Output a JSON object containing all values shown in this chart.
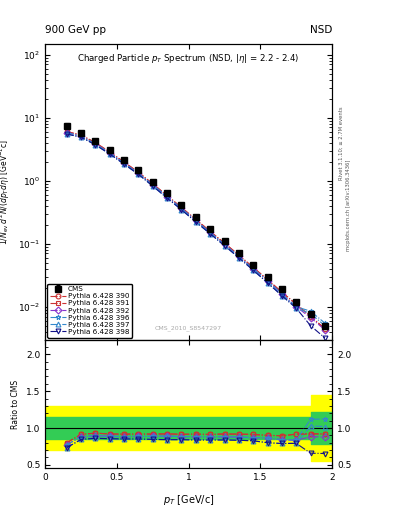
{
  "title_top_left": "900 GeV pp",
  "title_top_right": "NSD",
  "main_title": "Charged Particle p$_T$ Spectrum (NSD, |#eta| = 2.2 - 2.4)",
  "watermark": "CMS_2010_S8547297",
  "right_label_top": "Rivet 3.1.10; ≥ 2.7M events",
  "right_label_bot": "mcplots.cern.ch [arXiv:1306.3436]",
  "cms_x": [
    0.15,
    0.25,
    0.35,
    0.45,
    0.55,
    0.65,
    0.75,
    0.85,
    0.95,
    1.05,
    1.15,
    1.25,
    1.35,
    1.45,
    1.55,
    1.65,
    1.75,
    1.85,
    1.95
  ],
  "cms_y": [
    7.5,
    5.8,
    4.3,
    3.1,
    2.15,
    1.48,
    0.97,
    0.63,
    0.41,
    0.265,
    0.172,
    0.111,
    0.072,
    0.046,
    0.03,
    0.019,
    0.012,
    0.0076,
    0.0049
  ],
  "cms_yerr": [
    0.6,
    0.4,
    0.3,
    0.2,
    0.15,
    0.1,
    0.07,
    0.04,
    0.03,
    0.02,
    0.012,
    0.008,
    0.005,
    0.003,
    0.002,
    0.001,
    0.001,
    0.0006,
    0.0004
  ],
  "pythia_x": [
    0.15,
    0.25,
    0.35,
    0.45,
    0.55,
    0.65,
    0.75,
    0.85,
    0.95,
    1.05,
    1.15,
    1.25,
    1.35,
    1.45,
    1.55,
    1.65,
    1.75,
    1.85,
    1.95
  ],
  "pythia390_y": [
    6.0,
    5.3,
    4.0,
    2.85,
    1.97,
    1.36,
    0.89,
    0.58,
    0.375,
    0.243,
    0.157,
    0.102,
    0.066,
    0.042,
    0.027,
    0.017,
    0.011,
    0.007,
    0.0045
  ],
  "pythia391_y": [
    6.0,
    5.3,
    4.0,
    2.85,
    1.97,
    1.36,
    0.89,
    0.58,
    0.375,
    0.243,
    0.157,
    0.102,
    0.066,
    0.042,
    0.027,
    0.017,
    0.011,
    0.007,
    0.0045
  ],
  "pythia392_y": [
    5.8,
    5.1,
    3.85,
    2.75,
    1.9,
    1.31,
    0.86,
    0.56,
    0.362,
    0.234,
    0.151,
    0.098,
    0.063,
    0.04,
    0.026,
    0.016,
    0.01,
    0.0067,
    0.0043
  ],
  "pythia396_y": [
    5.8,
    5.1,
    3.85,
    2.75,
    1.9,
    1.31,
    0.86,
    0.56,
    0.362,
    0.234,
    0.151,
    0.098,
    0.063,
    0.04,
    0.026,
    0.016,
    0.01,
    0.0085,
    0.0055
  ],
  "pythia397_y": [
    5.5,
    4.9,
    3.7,
    2.65,
    1.83,
    1.26,
    0.82,
    0.53,
    0.345,
    0.222,
    0.144,
    0.093,
    0.06,
    0.038,
    0.024,
    0.015,
    0.0095,
    0.0078,
    0.005
  ],
  "pythia398_y": [
    5.5,
    4.9,
    3.7,
    2.65,
    1.83,
    1.26,
    0.82,
    0.53,
    0.345,
    0.222,
    0.144,
    0.093,
    0.06,
    0.038,
    0.024,
    0.015,
    0.0095,
    0.005,
    0.0032
  ],
  "series": [
    {
      "key": "pythia390_y",
      "color": "#cc3333",
      "marker": "o",
      "label": "Pythia 6.428 390"
    },
    {
      "key": "pythia391_y",
      "color": "#cc3333",
      "marker": "s",
      "label": "Pythia 6.428 391"
    },
    {
      "key": "pythia392_y",
      "color": "#8833cc",
      "marker": "D",
      "label": "Pythia 6.428 392"
    },
    {
      "key": "pythia396_y",
      "color": "#3388cc",
      "marker": "*",
      "label": "Pythia 6.428 396"
    },
    {
      "key": "pythia397_y",
      "color": "#3388cc",
      "marker": "^",
      "label": "Pythia 6.428 397"
    },
    {
      "key": "pythia398_y",
      "color": "#111188",
      "marker": "v",
      "label": "Pythia 6.428 398"
    }
  ],
  "xlim": [
    0.0,
    2.0
  ],
  "ylim_main": [
    0.003,
    150
  ],
  "ylim_ratio": [
    0.45,
    2.2
  ],
  "yticks_ratio": [
    0.5,
    1.0,
    1.5,
    2.0
  ],
  "yellow_lo": 0.7,
  "yellow_hi": 1.3,
  "yellow_lo_last": 0.55,
  "yellow_hi_last": 1.45,
  "green_lo": 0.85,
  "green_hi": 1.15,
  "green_lo_last": 0.78,
  "green_hi_last": 1.22,
  "band_x_break": 1.85
}
